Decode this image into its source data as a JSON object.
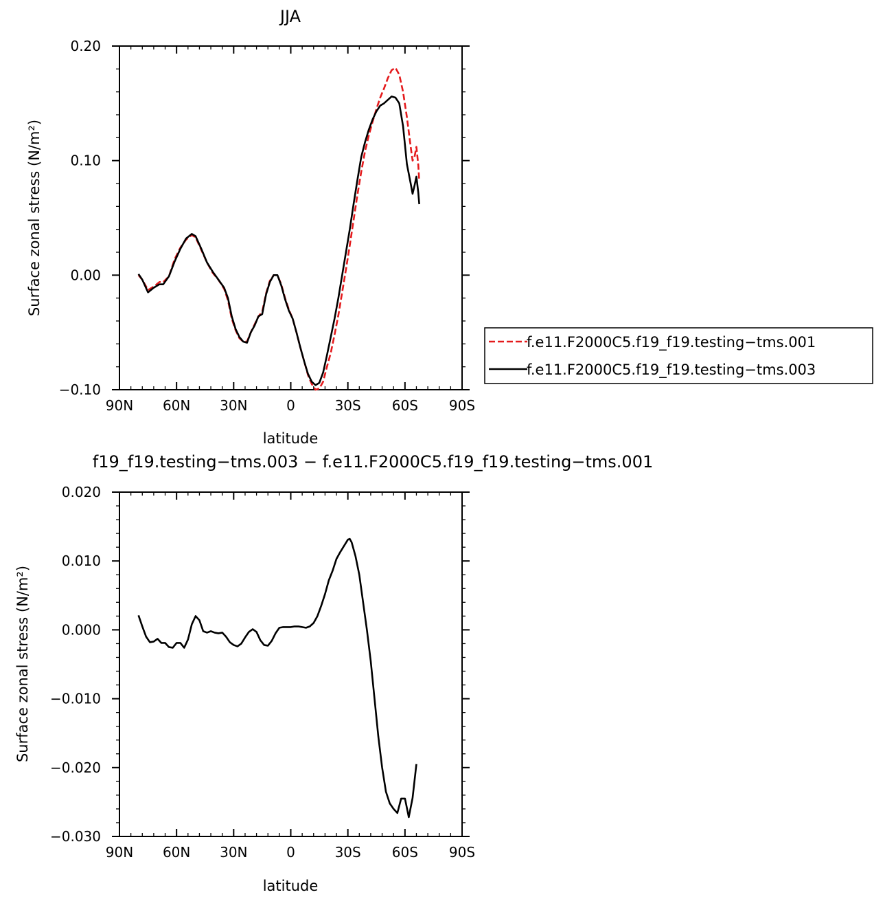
{
  "chart_data": [
    {
      "type": "line",
      "title": "JJA",
      "xlabel": "latitude",
      "ylabel": "Surface zonal stress (N/m²)",
      "xlim": [
        -90,
        90
      ],
      "ylim": [
        -0.1,
        0.2
      ],
      "x_ticks": [
        -90,
        -60,
        -30,
        0,
        30,
        60,
        90
      ],
      "x_tick_labels": [
        "90N",
        "60N",
        "30N",
        "0",
        "30S",
        "60S",
        "90S"
      ],
      "y_ticks": [
        -0.1,
        0.0,
        0.1,
        0.2
      ],
      "y_tick_labels": [
        "−0.10",
        "0.00",
        "0.10",
        "0.20"
      ],
      "grid": false,
      "legend_position": "right-middle",
      "series": [
        {
          "name": "f.e11.F2000C5.f19_f19.testing−tms.001",
          "color": "#e41a1c",
          "dash": "dashed",
          "points": [
            [
              -80,
              0.0
            ],
            [
              -78,
              -0.004
            ],
            [
              -75,
              -0.013
            ],
            [
              -72,
              -0.01
            ],
            [
              -69,
              -0.006
            ],
            [
              -67,
              -0.006
            ],
            [
              -64,
              -0.001
            ],
            [
              -61,
              0.014
            ],
            [
              -58,
              0.024
            ],
            [
              -55,
              0.031
            ],
            [
              -52,
              0.035
            ],
            [
              -50,
              0.033
            ],
            [
              -47,
              0.022
            ],
            [
              -44,
              0.011
            ],
            [
              -41,
              0.002
            ],
            [
              -38,
              -0.004
            ],
            [
              -35,
              -0.012
            ],
            [
              -33,
              -0.022
            ],
            [
              -31,
              -0.038
            ],
            [
              -29,
              -0.048
            ],
            [
              -27,
              -0.055
            ],
            [
              -25,
              -0.058
            ],
            [
              -23,
              -0.058
            ],
            [
              -21,
              -0.05
            ],
            [
              -19,
              -0.043
            ],
            [
              -17,
              -0.036
            ],
            [
              -15,
              -0.032
            ],
            [
              -13,
              -0.016
            ],
            [
              -11,
              -0.005
            ],
            [
              -9,
              0.0
            ],
            [
              -7,
              0.0
            ],
            [
              -5,
              -0.008
            ],
            [
              -3,
              -0.02
            ],
            [
              -1,
              -0.03
            ],
            [
              1,
              -0.038
            ],
            [
              3,
              -0.05
            ],
            [
              5,
              -0.063
            ],
            [
              7,
              -0.075
            ],
            [
              9,
              -0.087
            ],
            [
              11,
              -0.095
            ],
            [
              13,
              -0.1
            ],
            [
              15,
              -0.099
            ],
            [
              17,
              -0.093
            ],
            [
              19,
              -0.08
            ],
            [
              21,
              -0.068
            ],
            [
              23,
              -0.052
            ],
            [
              25,
              -0.035
            ],
            [
              27,
              -0.015
            ],
            [
              29,
              0.005
            ],
            [
              31,
              0.026
            ],
            [
              33,
              0.048
            ],
            [
              35,
              0.07
            ],
            [
              37,
              0.09
            ],
            [
              39,
              0.108
            ],
            [
              41,
              0.122
            ],
            [
              43,
              0.134
            ],
            [
              45,
              0.145
            ],
            [
              47,
              0.155
            ],
            [
              49,
              0.163
            ],
            [
              51,
              0.172
            ],
            [
              53,
              0.179
            ],
            [
              55,
              0.181
            ],
            [
              57,
              0.175
            ],
            [
              59,
              0.16
            ],
            [
              61,
              0.138
            ],
            [
              63,
              0.112
            ],
            [
              64,
              0.1
            ],
            [
              65,
              0.103
            ],
            [
              66,
              0.112
            ],
            [
              67,
              0.096
            ],
            [
              67.5,
              0.082
            ]
          ]
        },
        {
          "name": "f.e11.F2000C5.f19_f19.testing−tms.003",
          "color": "#000000",
          "dash": "solid",
          "points": [
            [
              -80,
              0.001
            ],
            [
              -78,
              -0.004
            ],
            [
              -75,
              -0.015
            ],
            [
              -72,
              -0.011
            ],
            [
              -69,
              -0.008
            ],
            [
              -67,
              -0.008
            ],
            [
              -64,
              -0.001
            ],
            [
              -61,
              0.012
            ],
            [
              -58,
              0.023
            ],
            [
              -55,
              0.032
            ],
            [
              -52,
              0.036
            ],
            [
              -50,
              0.034
            ],
            [
              -47,
              0.023
            ],
            [
              -44,
              0.011
            ],
            [
              -41,
              0.003
            ],
            [
              -38,
              -0.004
            ],
            [
              -35,
              -0.011
            ],
            [
              -33,
              -0.02
            ],
            [
              -31,
              -0.036
            ],
            [
              -29,
              -0.047
            ],
            [
              -27,
              -0.054
            ],
            [
              -25,
              -0.058
            ],
            [
              -23,
              -0.059
            ],
            [
              -21,
              -0.05
            ],
            [
              -19,
              -0.044
            ],
            [
              -17,
              -0.036
            ],
            [
              -15,
              -0.034
            ],
            [
              -13,
              -0.017
            ],
            [
              -11,
              -0.006
            ],
            [
              -9,
              0.0
            ],
            [
              -7,
              0.0
            ],
            [
              -5,
              -0.009
            ],
            [
              -3,
              -0.021
            ],
            [
              -1,
              -0.031
            ],
            [
              1,
              -0.038
            ],
            [
              3,
              -0.05
            ],
            [
              5,
              -0.063
            ],
            [
              7,
              -0.075
            ],
            [
              9,
              -0.086
            ],
            [
              11,
              -0.093
            ],
            [
              13,
              -0.096
            ],
            [
              15,
              -0.094
            ],
            [
              17,
              -0.085
            ],
            [
              19,
              -0.07
            ],
            [
              21,
              -0.054
            ],
            [
              23,
              -0.038
            ],
            [
              25,
              -0.02
            ],
            [
              27,
              0.0
            ],
            [
              29,
              0.02
            ],
            [
              31,
              0.04
            ],
            [
              33,
              0.062
            ],
            [
              35,
              0.083
            ],
            [
              37,
              0.103
            ],
            [
              39,
              0.116
            ],
            [
              41,
              0.127
            ],
            [
              43,
              0.136
            ],
            [
              45,
              0.143
            ],
            [
              47,
              0.148
            ],
            [
              49,
              0.15
            ],
            [
              51,
              0.153
            ],
            [
              53,
              0.156
            ],
            [
              55,
              0.155
            ],
            [
              57,
              0.15
            ],
            [
              59,
              0.13
            ],
            [
              61,
              0.097
            ],
            [
              63,
              0.08
            ],
            [
              64,
              0.071
            ],
            [
              65,
              0.078
            ],
            [
              66,
              0.086
            ],
            [
              67,
              0.072
            ],
            [
              67.5,
              0.062
            ]
          ]
        }
      ]
    },
    {
      "type": "line",
      "title": "f19_f19.testing−tms.003 − f.e11.F2000C5.f19_f19.testing−tms.001",
      "xlabel": "latitude",
      "ylabel": "Surface zonal stress (N/m²)",
      "xlim": [
        -90,
        90
      ],
      "ylim": [
        -0.03,
        0.02
      ],
      "x_ticks": [
        -90,
        -60,
        -30,
        0,
        30,
        60,
        90
      ],
      "x_tick_labels": [
        "90N",
        "60N",
        "30N",
        "0",
        "30S",
        "60S",
        "90S"
      ],
      "y_ticks": [
        -0.03,
        -0.02,
        -0.01,
        0.0,
        0.01,
        0.02
      ],
      "y_tick_labels": [
        "−0.030",
        "−0.020",
        "−0.010",
        "0.000",
        "0.010",
        "0.020"
      ],
      "grid": false,
      "series": [
        {
          "color": "#000000",
          "dash": "solid",
          "points": [
            [
              -80,
              0.0021
            ],
            [
              -78,
              0.0005
            ],
            [
              -76,
              -0.001
            ],
            [
              -74,
              -0.0018
            ],
            [
              -72,
              -0.0017
            ],
            [
              -70,
              -0.0013
            ],
            [
              -68,
              -0.0019
            ],
            [
              -66,
              -0.0019
            ],
            [
              -64,
              -0.0025
            ],
            [
              -62,
              -0.0026
            ],
            [
              -60,
              -0.0019
            ],
            [
              -58,
              -0.0019
            ],
            [
              -56,
              -0.0026
            ],
            [
              -54,
              -0.0014
            ],
            [
              -52,
              0.0008
            ],
            [
              -50,
              0.002
            ],
            [
              -48,
              0.0014
            ],
            [
              -46,
              -0.0002
            ],
            [
              -44,
              -0.0004
            ],
            [
              -42,
              -0.0002
            ],
            [
              -40,
              -0.0004
            ],
            [
              -38,
              -0.0005
            ],
            [
              -36,
              -0.0004
            ],
            [
              -34,
              -0.001
            ],
            [
              -32,
              -0.0018
            ],
            [
              -30,
              -0.0022
            ],
            [
              -28,
              -0.0024
            ],
            [
              -26,
              -0.002
            ],
            [
              -24,
              -0.0011
            ],
            [
              -22,
              -0.0003
            ],
            [
              -20,
              0.0001
            ],
            [
              -18,
              -0.0003
            ],
            [
              -16,
              -0.0015
            ],
            [
              -14,
              -0.0022
            ],
            [
              -12,
              -0.0023
            ],
            [
              -10,
              -0.0016
            ],
            [
              -8,
              -0.0005
            ],
            [
              -6,
              0.0003
            ],
            [
              -4,
              0.0004
            ],
            [
              -2,
              0.0004
            ],
            [
              0,
              0.0004
            ],
            [
              2,
              0.0005
            ],
            [
              4,
              0.0005
            ],
            [
              6,
              0.0004
            ],
            [
              8,
              0.0003
            ],
            [
              10,
              0.0005
            ],
            [
              12,
              0.001
            ],
            [
              14,
              0.002
            ],
            [
              16,
              0.0035
            ],
            [
              18,
              0.0052
            ],
            [
              20,
              0.0072
            ],
            [
              22,
              0.0086
            ],
            [
              24,
              0.0103
            ],
            [
              26,
              0.0113
            ],
            [
              28,
              0.0122
            ],
            [
              30,
              0.0131
            ],
            [
              31,
              0.0132
            ],
            [
              32,
              0.0127
            ],
            [
              34,
              0.0107
            ],
            [
              36,
              0.008
            ],
            [
              38,
              0.004
            ],
            [
              40,
              0.0
            ],
            [
              42,
              -0.0045
            ],
            [
              44,
              -0.01
            ],
            [
              46,
              -0.0155
            ],
            [
              48,
              -0.02
            ],
            [
              50,
              -0.0235
            ],
            [
              52,
              -0.0252
            ],
            [
              54,
              -0.026
            ],
            [
              56,
              -0.0266
            ],
            [
              58,
              -0.0245
            ],
            [
              60,
              -0.0245
            ],
            [
              62,
              -0.0272
            ],
            [
              64,
              -0.0244
            ],
            [
              66,
              -0.0195
            ]
          ]
        }
      ]
    }
  ]
}
